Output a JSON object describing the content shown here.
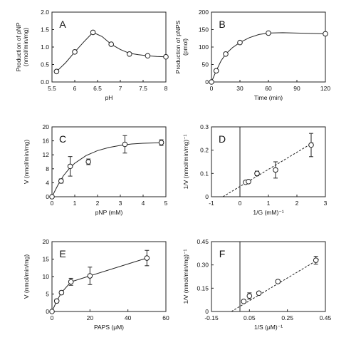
{
  "chart_data": [
    {
      "panel": "A",
      "type": "line",
      "xlabel": "pH",
      "ylabel": [
        "Production of pNP",
        "(nmol/min/mg)"
      ],
      "xlim": [
        5.5,
        8
      ],
      "ylim": [
        0,
        2
      ],
      "xticks": [
        5.5,
        6,
        6.5,
        7,
        7.5,
        8
      ],
      "xtick_labels": [
        "5.5",
        "6",
        "6.5",
        "7",
        "7.5",
        "8"
      ],
      "yticks": [
        0,
        0.5,
        1,
        1.5,
        2
      ],
      "ytick_labels": [
        "0.0",
        "0.5",
        "1.0",
        "1.5",
        "2.0"
      ],
      "points": [
        {
          "x": 5.6,
          "y": 0.3
        },
        {
          "x": 6.0,
          "y": 0.86
        },
        {
          "x": 6.4,
          "y": 1.42
        },
        {
          "x": 6.8,
          "y": 1.08
        },
        {
          "x": 7.2,
          "y": 0.8
        },
        {
          "x": 7.6,
          "y": 0.75
        },
        {
          "x": 8.0,
          "y": 0.72
        }
      ],
      "curve": [
        [
          5.6,
          0.3
        ],
        [
          5.8,
          0.55
        ],
        [
          6.0,
          0.86
        ],
        [
          6.2,
          1.15
        ],
        [
          6.4,
          1.42
        ],
        [
          6.6,
          1.3
        ],
        [
          6.8,
          1.08
        ],
        [
          7.0,
          0.93
        ],
        [
          7.2,
          0.82
        ],
        [
          7.4,
          0.78
        ],
        [
          7.6,
          0.75
        ],
        [
          7.8,
          0.73
        ],
        [
          8.0,
          0.72
        ]
      ]
    },
    {
      "panel": "B",
      "type": "line",
      "xlabel": "Time (min)",
      "ylabel": [
        "Production of pNPS",
        "(pmol)"
      ],
      "xlim": [
        0,
        120
      ],
      "ylim": [
        0,
        200
      ],
      "xticks": [
        0,
        30,
        60,
        90,
        120
      ],
      "xtick_labels": [
        "0",
        "30",
        "60",
        "90",
        "120"
      ],
      "yticks": [
        0,
        50,
        100,
        150,
        200
      ],
      "ytick_labels": [
        "0",
        "50",
        "100",
        "150",
        "200"
      ],
      "points": [
        {
          "x": 0,
          "y": 0
        },
        {
          "x": 5,
          "y": 32
        },
        {
          "x": 15,
          "y": 80
        },
        {
          "x": 30,
          "y": 113
        },
        {
          "x": 60,
          "y": 140
        },
        {
          "x": 120,
          "y": 138
        }
      ],
      "curve": [
        [
          0,
          0
        ],
        [
          5,
          32
        ],
        [
          10,
          60
        ],
        [
          15,
          80
        ],
        [
          22,
          98
        ],
        [
          30,
          113
        ],
        [
          40,
          127
        ],
        [
          50,
          136
        ],
        [
          60,
          140
        ],
        [
          75,
          141
        ],
        [
          90,
          140
        ],
        [
          105,
          139
        ],
        [
          120,
          138
        ]
      ]
    },
    {
      "panel": "C",
      "type": "scatter",
      "xlabel": "pNP (mM)",
      "ylabel": [
        "V (nmol/min/mg)"
      ],
      "xlim": [
        0,
        5
      ],
      "ylim": [
        0,
        20
      ],
      "xticks": [
        0,
        1,
        2,
        3,
        4,
        5
      ],
      "xtick_labels": [
        "0",
        "1",
        "2",
        "3",
        "4",
        "5"
      ],
      "yticks": [
        0,
        4,
        8,
        12,
        16,
        20
      ],
      "ytick_labels": [
        "0",
        "4",
        "8",
        "12",
        "16",
        "20"
      ],
      "points": [
        {
          "x": 0,
          "y": 0
        },
        {
          "x": 0.4,
          "y": 4.5,
          "err": 0.6
        },
        {
          "x": 0.8,
          "y": 8.7,
          "err": 2.8
        },
        {
          "x": 1.6,
          "y": 10,
          "err": 0.8
        },
        {
          "x": 3.2,
          "y": 15,
          "err": 2.5
        },
        {
          "x": 4.8,
          "y": 15.5,
          "err": 0.8
        }
      ],
      "curve": [
        [
          0,
          0
        ],
        [
          0.25,
          3.2
        ],
        [
          0.5,
          6
        ],
        [
          0.75,
          8
        ],
        [
          1,
          9.6
        ],
        [
          1.5,
          11.8
        ],
        [
          2,
          13.2
        ],
        [
          2.5,
          14.1
        ],
        [
          3,
          14.7
        ],
        [
          3.5,
          15.1
        ],
        [
          4,
          15.3
        ],
        [
          4.5,
          15.4
        ],
        [
          4.9,
          15.5
        ]
      ]
    },
    {
      "panel": "D",
      "type": "scatter",
      "xlabel": "1/G (mM)⁻¹",
      "ylabel": [
        "1/V (nmol/min/mg)⁻¹"
      ],
      "xlim": [
        -1,
        3
      ],
      "ylim": [
        0,
        0.3
      ],
      "xticks": [
        -1,
        0,
        1,
        2,
        3
      ],
      "xtick_labels": [
        "-1",
        "0",
        "1",
        "2",
        "3"
      ],
      "yticks": [
        0,
        0.1,
        0.2,
        0.3
      ],
      "ytick_labels": [
        "0",
        "0.1",
        "0.2",
        "0.3"
      ],
      "points": [
        {
          "x": 0.2,
          "y": 0.062,
          "err": 0.005
        },
        {
          "x": 0.3,
          "y": 0.065,
          "err": 0.006
        },
        {
          "x": 0.6,
          "y": 0.1,
          "err": 0.01
        },
        {
          "x": 1.25,
          "y": 0.115,
          "err": 0.035
        },
        {
          "x": 2.5,
          "y": 0.222,
          "err": 0.05
        }
      ],
      "fit_line": [
        [
          -0.6,
          0
        ],
        [
          2.6,
          0.235
        ]
      ]
    },
    {
      "panel": "E",
      "type": "line",
      "xlabel": "PAPS (μM)",
      "ylabel": [
        "V (nmol/min/mg)"
      ],
      "xlim": [
        0,
        60
      ],
      "ylim": [
        0,
        20
      ],
      "xticks": [
        0,
        20,
        40,
        60
      ],
      "xtick_labels": [
        "0",
        "20",
        "40",
        "60"
      ],
      "yticks": [
        0,
        5,
        10,
        15,
        20
      ],
      "ytick_labels": [
        "0",
        "5",
        "10",
        "15",
        "20"
      ],
      "points": [
        {
          "x": 0,
          "y": 0
        },
        {
          "x": 2.5,
          "y": 3,
          "err": 0.5
        },
        {
          "x": 5,
          "y": 5.4,
          "err": 0.5
        },
        {
          "x": 10,
          "y": 8.5,
          "err": 1
        },
        {
          "x": 20,
          "y": 10.2,
          "err": 2.5
        },
        {
          "x": 50,
          "y": 15.3,
          "err": 2.2
        }
      ],
      "curve": [
        [
          0,
          0
        ],
        [
          2.5,
          3
        ],
        [
          5,
          5.4
        ],
        [
          10,
          8.5
        ],
        [
          20,
          10.2
        ],
        [
          50,
          15.3
        ]
      ]
    },
    {
      "panel": "F",
      "type": "scatter",
      "xlabel": "1/S (μM)⁻¹",
      "ylabel": [
        "1/V (nmol/min/mg)⁻¹"
      ],
      "xlim": [
        -0.15,
        0.45
      ],
      "ylim": [
        0,
        0.45
      ],
      "xticks": [
        -0.15,
        0.05,
        0.25,
        0.45
      ],
      "xtick_labels": [
        "-0.15",
        "0.05",
        "0.25",
        "0.45"
      ],
      "yticks": [
        0,
        0.15,
        0.3,
        0.45
      ],
      "ytick_labels": [
        "0",
        "0.15",
        "0.30",
        "0.45"
      ],
      "points": [
        {
          "x": 0.02,
          "y": 0.065,
          "err": 0.01
        },
        {
          "x": 0.05,
          "y": 0.1,
          "err": 0.02
        },
        {
          "x": 0.1,
          "y": 0.118,
          "err": 0.01
        },
        {
          "x": 0.2,
          "y": 0.193,
          "err": 0.01
        },
        {
          "x": 0.4,
          "y": 0.33,
          "err": 0.025
        }
      ],
      "fit_line": [
        [
          -0.045,
          0
        ],
        [
          0.42,
          0.34
        ]
      ]
    }
  ]
}
